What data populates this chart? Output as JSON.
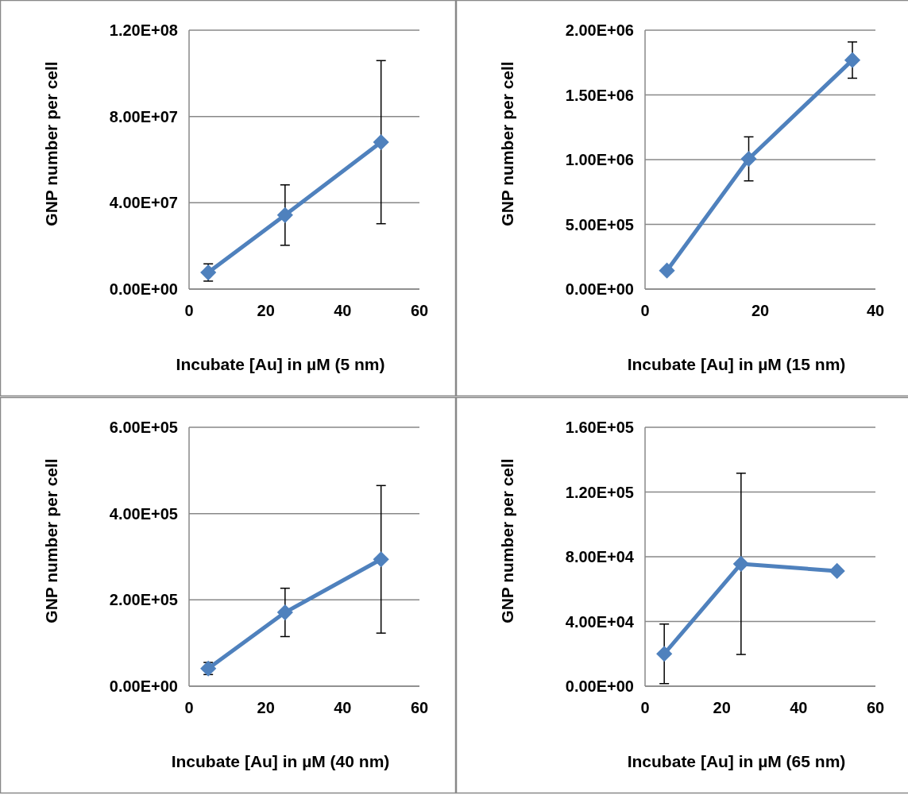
{
  "chart_data": [
    {
      "type": "line",
      "xlabel": "Incubate [Au] in µM (5 nm)",
      "ylabel": "GNP number per cell",
      "x": [
        5,
        25,
        50
      ],
      "xlim": [
        0,
        60
      ],
      "xticks": [
        0,
        20,
        40,
        60
      ],
      "ylim": [
        0,
        120000000
      ],
      "yticks": [
        {
          "value": 0,
          "label": "0.00E+00"
        },
        {
          "value": 40000000,
          "label": "4.00E+07"
        },
        {
          "value": 80000000,
          "label": "8.00E+07"
        },
        {
          "value": 120000000,
          "label": "1.20E+08"
        }
      ],
      "grid": "y",
      "marker": "diamond",
      "series": [
        {
          "color": "#4f81bd",
          "values": [
            7700000,
            34300000,
            68100000
          ],
          "errors": [
            4000000,
            14000000,
            37800000
          ]
        }
      ]
    },
    {
      "type": "line",
      "xlabel": "Incubate [Au] in µM (15 nm)",
      "ylabel": "GNP number per cell",
      "x": [
        3.8,
        18,
        36
      ],
      "xlim": [
        0,
        40
      ],
      "xticks": [
        0,
        20,
        40
      ],
      "ylim": [
        0,
        2000000
      ],
      "yticks": [
        {
          "value": 0,
          "label": "0.00E+00"
        },
        {
          "value": 500000,
          "label": "5.00E+05"
        },
        {
          "value": 1000000,
          "label": "1.00E+06"
        },
        {
          "value": 1500000,
          "label": "1.50E+06"
        },
        {
          "value": 2000000,
          "label": "2.00E+06"
        }
      ],
      "grid": "y",
      "marker": "diamond",
      "series": [
        {
          "color": "#4f81bd",
          "values": [
            143000,
            1006000,
            1769000
          ],
          "errors": [
            null,
            170000,
            140000
          ]
        }
      ]
    },
    {
      "type": "line",
      "xlabel": "Incubate [Au] in µM (40 nm)",
      "ylabel": "GNP number per cell",
      "x": [
        5,
        25,
        50
      ],
      "xlim": [
        0,
        60
      ],
      "xticks": [
        0,
        20,
        40,
        60
      ],
      "ylim": [
        0,
        600000
      ],
      "yticks": [
        {
          "value": 0,
          "label": "0.00E+00"
        },
        {
          "value": 200000,
          "label": "2.00E+05"
        },
        {
          "value": 400000,
          "label": "4.00E+05"
        },
        {
          "value": 600000,
          "label": "6.00E+05"
        }
      ],
      "grid": "y",
      "marker": "diamond",
      "series": [
        {
          "color": "#4f81bd",
          "values": [
            41000,
            171000,
            294000
          ],
          "errors": [
            14000,
            56000,
            171000
          ]
        }
      ]
    },
    {
      "type": "line",
      "xlabel": "Incubate [Au] in µM (65 nm)",
      "ylabel": "GNP number per cell",
      "x": [
        5,
        25,
        50
      ],
      "xlim": [
        0,
        60
      ],
      "xticks": [
        0,
        20,
        40,
        60
      ],
      "ylim": [
        0,
        160000
      ],
      "yticks": [
        {
          "value": 0,
          "label": "0.00E+00"
        },
        {
          "value": 40000,
          "label": "4.00E+04"
        },
        {
          "value": 80000,
          "label": "8.00E+04"
        },
        {
          "value": 120000,
          "label": "1.20E+05"
        },
        {
          "value": 160000,
          "label": "1.60E+05"
        }
      ],
      "grid": "y",
      "marker": "diamond",
      "series": [
        {
          "color": "#4f81bd",
          "values": [
            20000,
            75600,
            71200
          ],
          "errors": [
            18400,
            56000,
            null
          ]
        }
      ]
    }
  ]
}
